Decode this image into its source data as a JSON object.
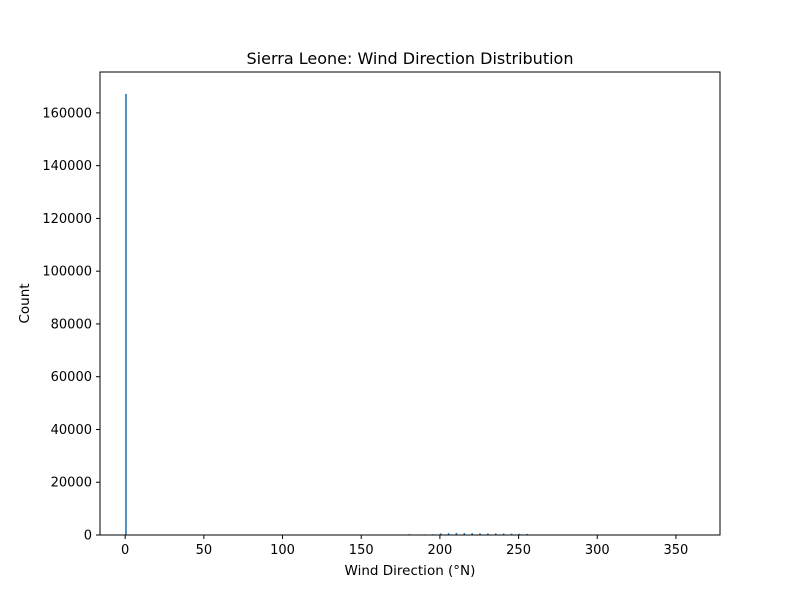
{
  "chart_data": {
    "type": "bar",
    "title": "Sierra Leone: Wind Direction Distribution",
    "xlabel": "Wind Direction (°N)",
    "ylabel": "Count",
    "xlim": [
      -16,
      378
    ],
    "ylim": [
      0,
      175500
    ],
    "xticks": [
      0,
      50,
      100,
      150,
      200,
      250,
      300,
      350
    ],
    "yticks": [
      0,
      20000,
      40000,
      60000,
      80000,
      100000,
      120000,
      140000,
      160000
    ],
    "grid": false,
    "bar_color": "#1f77b4",
    "bin_width": 1,
    "bars": [
      {
        "x": 0,
        "count": 167200
      },
      {
        "x": 180,
        "count": 300
      },
      {
        "x": 185,
        "count": 200
      },
      {
        "x": 190,
        "count": 250
      },
      {
        "x": 195,
        "count": 300
      },
      {
        "x": 200,
        "count": 600
      },
      {
        "x": 205,
        "count": 700
      },
      {
        "x": 210,
        "count": 800
      },
      {
        "x": 215,
        "count": 750
      },
      {
        "x": 220,
        "count": 700
      },
      {
        "x": 225,
        "count": 650
      },
      {
        "x": 230,
        "count": 600
      },
      {
        "x": 235,
        "count": 600
      },
      {
        "x": 240,
        "count": 550
      },
      {
        "x": 245,
        "count": 500
      },
      {
        "x": 250,
        "count": 450
      },
      {
        "x": 255,
        "count": 400
      },
      {
        "x": 260,
        "count": 200
      },
      {
        "x": 265,
        "count": 100
      },
      {
        "x": 270,
        "count": 80
      },
      {
        "x": 280,
        "count": 60
      },
      {
        "x": 300,
        "count": 50
      },
      {
        "x": 330,
        "count": 40
      },
      {
        "x": 350,
        "count": 30
      }
    ]
  }
}
